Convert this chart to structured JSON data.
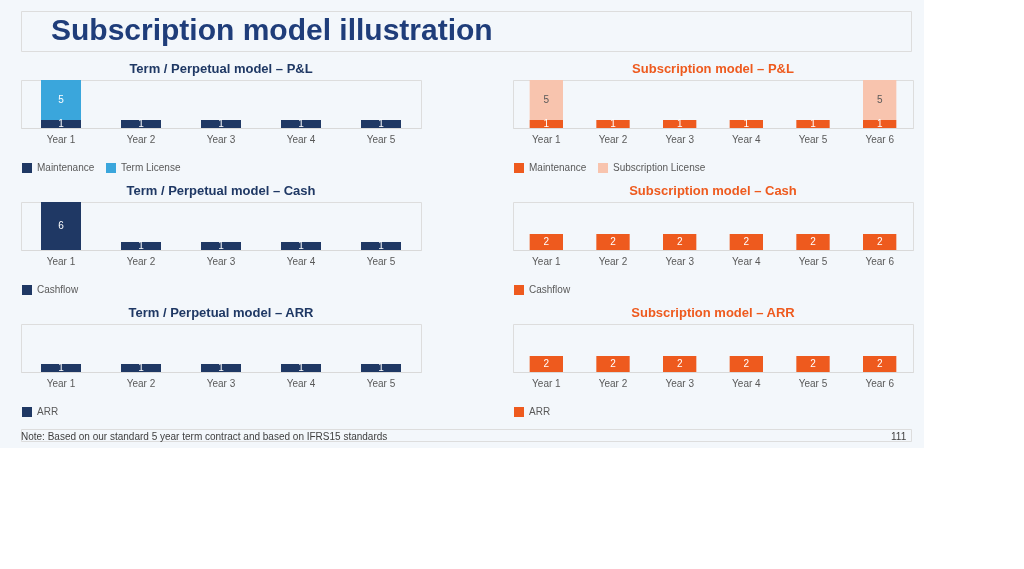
{
  "chart_data": [
    {
      "type": "other",
      "title": "Subscription model illustration",
      "annotations": [
        "Note: Based on our standard 5 year term contract and based on IFRS15 standards",
        "111"
      ]
    },
    {
      "type": "bar",
      "title": "Term / Perpetual model – P&L",
      "categories": [
        "Year 1",
        "Year 2",
        "Year 3",
        "Year 4",
        "Year 5"
      ],
      "stacked": true,
      "data_labels": true,
      "legend": "bottom",
      "series": [
        {
          "name": "Maintenance",
          "color": "#1f3864",
          "values": [
            1,
            1,
            1,
            1,
            1
          ]
        },
        {
          "name": "Term License",
          "color": "#3aa6dc",
          "values": [
            5,
            null,
            null,
            null,
            null
          ]
        }
      ]
    },
    {
      "type": "bar",
      "title": "Subscription model – P&L",
      "categories": [
        "Year 1",
        "Year 2",
        "Year 3",
        "Year 4",
        "Year 5",
        "Year 6"
      ],
      "stacked": true,
      "data_labels": true,
      "legend": "bottom",
      "series": [
        {
          "name": "Maintenance",
          "color": "#ee5a1e",
          "values": [
            1,
            1,
            1,
            1,
            1,
            1
          ]
        },
        {
          "name": "Subscription License",
          "color": "#f8c4ae",
          "values": [
            5,
            null,
            null,
            null,
            null,
            5
          ]
        }
      ]
    },
    {
      "type": "bar",
      "title": "Term / Perpetual model – Cash",
      "categories": [
        "Year 1",
        "Year 2",
        "Year 3",
        "Year 4",
        "Year 5"
      ],
      "data_labels": true,
      "legend": "bottom",
      "series": [
        {
          "name": "Cashflow",
          "color": "#1f3864",
          "values": [
            6,
            1,
            1,
            1,
            1
          ]
        }
      ]
    },
    {
      "type": "bar",
      "title": "Subscription model – Cash",
      "categories": [
        "Year 1",
        "Year 2",
        "Year 3",
        "Year 4",
        "Year 5",
        "Year 6"
      ],
      "data_labels": true,
      "legend": "bottom",
      "series": [
        {
          "name": "Cashflow",
          "color": "#ee5a1e",
          "values": [
            2,
            2,
            2,
            2,
            2,
            2
          ]
        }
      ]
    },
    {
      "type": "bar",
      "title": "Term / Perpetual model – ARR",
      "categories": [
        "Year 1",
        "Year 2",
        "Year 3",
        "Year 4",
        "Year 5"
      ],
      "data_labels": true,
      "legend": "bottom",
      "series": [
        {
          "name": "ARR",
          "color": "#1f3864",
          "values": [
            1,
            1,
            1,
            1,
            1
          ]
        }
      ]
    },
    {
      "type": "bar",
      "title": "Subscription model – ARR",
      "categories": [
        "Year 1",
        "Year 2",
        "Year 3",
        "Year 4",
        "Year 5",
        "Year 6"
      ],
      "data_labels": true,
      "legend": "bottom",
      "series": [
        {
          "name": "ARR",
          "color": "#ee5a1e",
          "values": [
            2,
            2,
            2,
            2,
            2,
            2
          ]
        }
      ]
    }
  ]
}
